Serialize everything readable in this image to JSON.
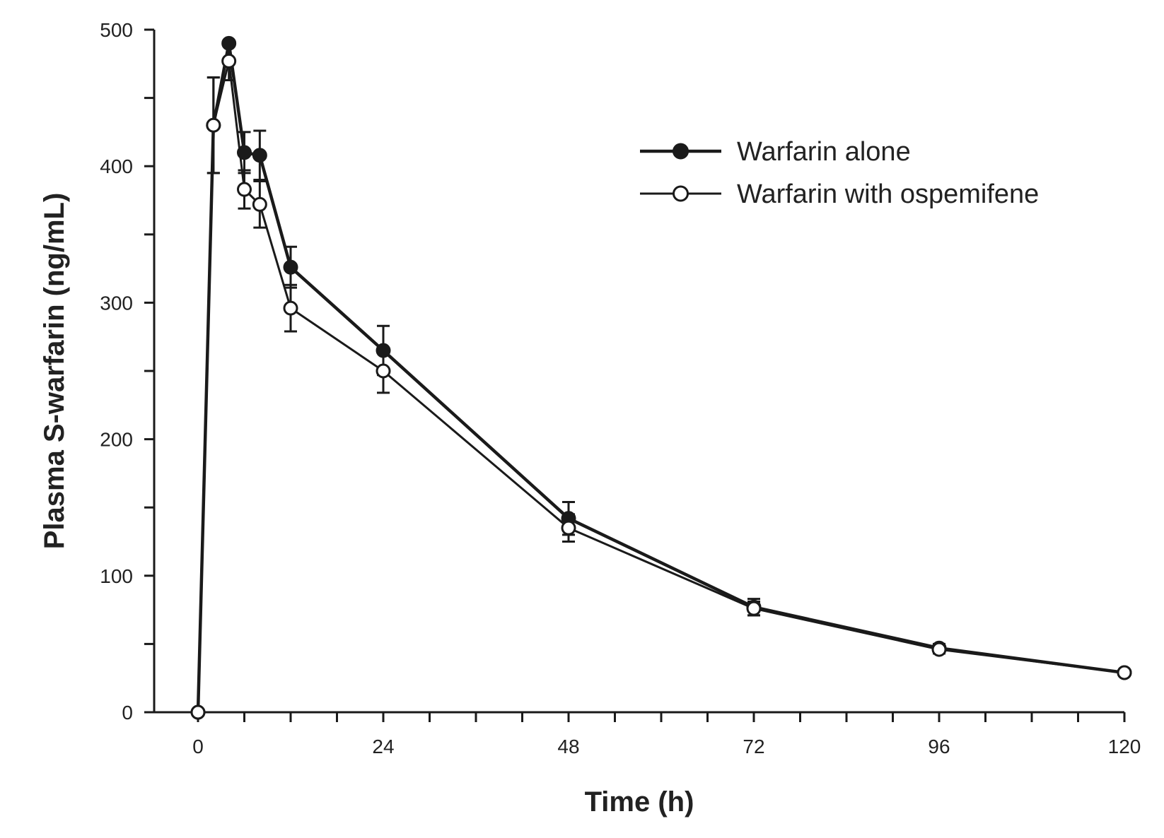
{
  "chart_data": {
    "type": "line",
    "title": "",
    "xlabel": "Time (h)",
    "ylabel": "Plasma S-warfarin (ng/mL)",
    "xlim": [
      0,
      120
    ],
    "ylim": [
      0,
      500
    ],
    "xticks": [
      0,
      24,
      48,
      72,
      96,
      120
    ],
    "yticks": [
      0,
      100,
      200,
      300,
      400,
      500
    ],
    "grid": false,
    "legend_position": "top-right",
    "x": [
      0,
      2,
      4,
      6,
      8,
      12,
      24,
      48,
      72,
      96,
      120
    ],
    "series": [
      {
        "name": "Warfarin alone",
        "marker": "filled-circle",
        "values": [
          0,
          430,
          490,
          410,
          408,
          326,
          265,
          142,
          77,
          47,
          29
        ],
        "errors": [
          0,
          35,
          0,
          15,
          18,
          15,
          18,
          12,
          6,
          3,
          2
        ]
      },
      {
        "name": "Warfarin with ospemifene",
        "marker": "open-circle",
        "values": [
          0,
          430,
          477,
          383,
          372,
          296,
          250,
          135,
          76,
          46,
          29
        ],
        "errors": [
          0,
          35,
          14,
          14,
          17,
          17,
          16,
          10,
          5,
          3,
          2
        ]
      }
    ]
  }
}
